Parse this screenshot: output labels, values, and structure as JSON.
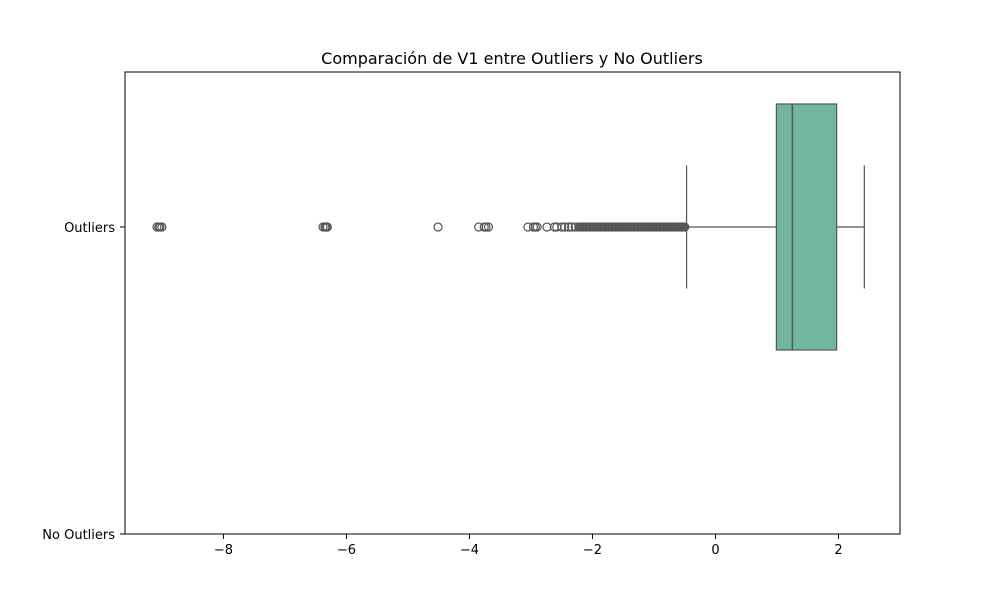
{
  "chart_data": {
    "type": "boxplot",
    "orientation": "horizontal",
    "title": "Comparación de V1 entre Outliers y No Outliers",
    "xlabel": "",
    "ylabel": "",
    "xlim": [
      -9.6,
      3.0
    ],
    "x_ticks": [
      -8,
      -6,
      -4,
      -2,
      0,
      2
    ],
    "x_tick_labels": [
      "−8",
      "−6",
      "−4",
      "−2",
      "0",
      "2"
    ],
    "categories": [
      "Outliers",
      "No Outliers"
    ],
    "grid": false,
    "legend": "none",
    "box_color": "#72b6a1",
    "line_color": "#555555",
    "series": [
      {
        "category": "Outliers",
        "whisker_low": -0.47,
        "q1": 0.99,
        "median": 1.25,
        "q3": 1.97,
        "whisker_high": 2.42,
        "fliers": [
          -9.08,
          -9.05,
          -9.03,
          -9.0,
          -6.38,
          -6.35,
          -6.33,
          -6.31,
          -4.51,
          -3.85,
          -3.76,
          -3.73,
          -3.69,
          -3.05,
          -2.96,
          -2.93,
          -2.9,
          -2.74,
          -2.62,
          -2.58,
          -2.5,
          -2.45,
          -2.39,
          -2.34,
          -2.28,
          -2.22,
          -2.16,
          -2.1,
          -2.04,
          -1.98,
          -1.92,
          -1.86,
          -1.8,
          -1.74,
          -1.68,
          -1.62,
          -1.56,
          -1.5,
          -1.44,
          -1.38,
          -1.32,
          -1.26,
          -1.2,
          -1.14,
          -1.08,
          -1.02,
          -0.96,
          -0.9,
          -0.84,
          -0.78,
          -0.72,
          -0.66,
          -0.6,
          -0.55,
          -0.5
        ]
      },
      {
        "category": "No Outliers",
        "empty": true
      }
    ]
  }
}
